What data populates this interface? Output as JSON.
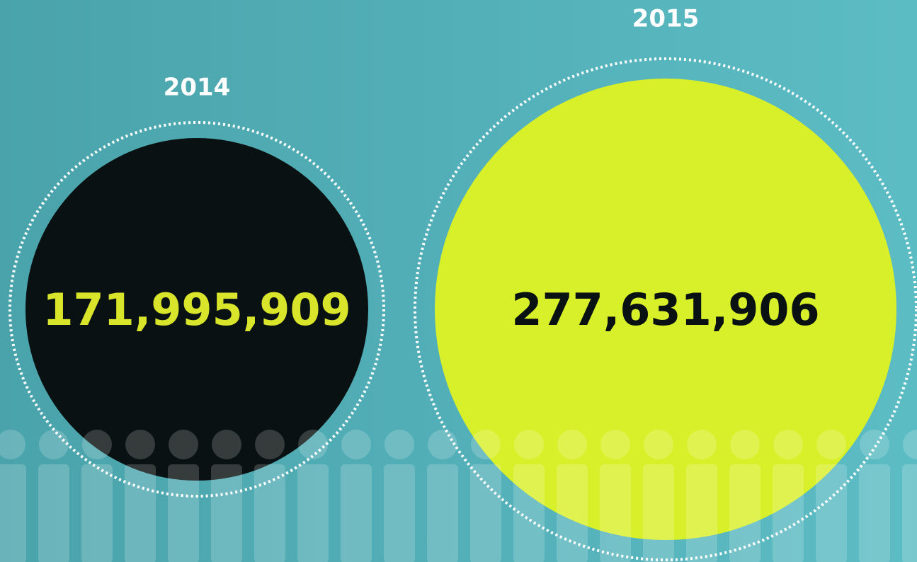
{
  "items": [
    {
      "year": "2014",
      "value": "171,995,909"
    },
    {
      "year": "2015",
      "value": "277,631,906"
    }
  ]
}
